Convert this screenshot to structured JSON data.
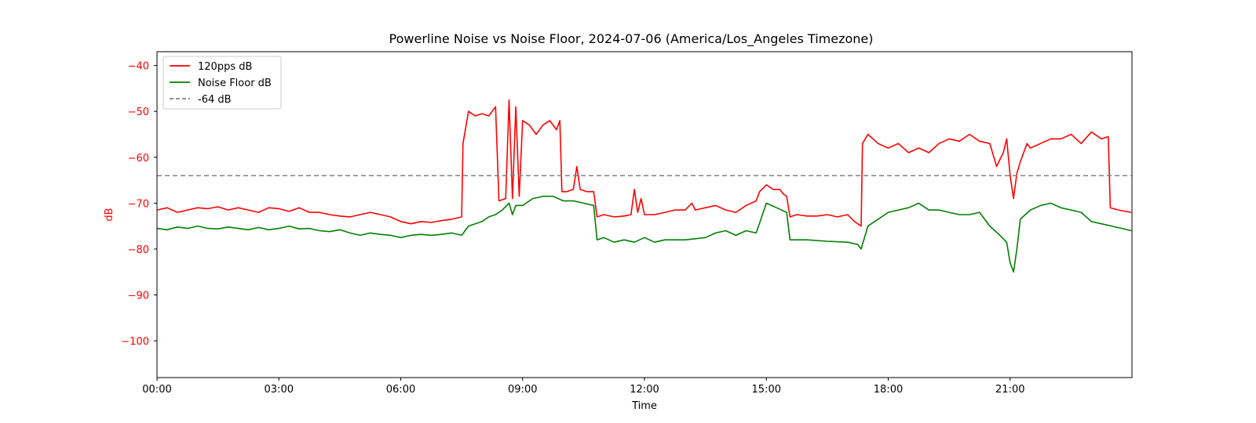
{
  "chart_data": {
    "type": "line",
    "title": "Powerline Noise vs Noise Floor, 2024-07-06 (America/Los_Angeles Timezone)",
    "xlabel": "Time",
    "ylabel": "dB",
    "xlim": [
      "00:00",
      "24:00"
    ],
    "ylim": [
      -108,
      -37
    ],
    "x_ticks": [
      "00:00",
      "03:00",
      "06:00",
      "09:00",
      "12:00",
      "15:00",
      "18:00",
      "21:00"
    ],
    "y_ticks": [
      -40,
      -50,
      -60,
      -70,
      -80,
      -90,
      -100
    ],
    "grid": false,
    "legend_position": "top-left",
    "ylabel_color": "#ff0000",
    "series": [
      {
        "name": "120pps dB",
        "color": "#ff0000",
        "points": [
          [
            "00:00",
            -71.5
          ],
          [
            "00:15",
            -71.0
          ],
          [
            "00:30",
            -72.0
          ],
          [
            "00:45",
            -71.5
          ],
          [
            "01:00",
            -71.0
          ],
          [
            "01:15",
            -71.2
          ],
          [
            "01:30",
            -70.8
          ],
          [
            "01:45",
            -71.5
          ],
          [
            "02:00",
            -71.0
          ],
          [
            "02:15",
            -71.5
          ],
          [
            "02:30",
            -72.0
          ],
          [
            "02:45",
            -71.0
          ],
          [
            "03:00",
            -71.2
          ],
          [
            "03:15",
            -71.8
          ],
          [
            "03:30",
            -71.0
          ],
          [
            "03:45",
            -72.0
          ],
          [
            "04:00",
            -72.0
          ],
          [
            "04:15",
            -72.5
          ],
          [
            "04:30",
            -72.8
          ],
          [
            "04:45",
            -73.0
          ],
          [
            "05:00",
            -72.5
          ],
          [
            "05:15",
            -72.0
          ],
          [
            "05:30",
            -72.5
          ],
          [
            "05:45",
            -73.0
          ],
          [
            "06:00",
            -74.0
          ],
          [
            "06:15",
            -74.5
          ],
          [
            "06:30",
            -74.0
          ],
          [
            "06:45",
            -74.2
          ],
          [
            "07:00",
            -73.8
          ],
          [
            "07:15",
            -73.5
          ],
          [
            "07:30",
            -73.0
          ],
          [
            "07:32",
            -57.0
          ],
          [
            "07:40",
            -50.0
          ],
          [
            "07:50",
            -51.0
          ],
          [
            "08:00",
            -50.5
          ],
          [
            "08:10",
            -51.0
          ],
          [
            "08:20",
            -49.0
          ],
          [
            "08:25",
            -69.5
          ],
          [
            "08:35",
            -69.0
          ],
          [
            "08:40",
            -47.5
          ],
          [
            "08:45",
            -69.0
          ],
          [
            "08:50",
            -49.0
          ],
          [
            "08:55",
            -68.5
          ],
          [
            "09:00",
            -52.0
          ],
          [
            "09:10",
            -53.0
          ],
          [
            "09:20",
            -55.0
          ],
          [
            "09:30",
            -53.0
          ],
          [
            "09:40",
            -52.0
          ],
          [
            "09:50",
            -54.0
          ],
          [
            "09:55",
            -52.0
          ],
          [
            "09:58",
            -67.5
          ],
          [
            "10:05",
            -67.5
          ],
          [
            "10:15",
            -67.0
          ],
          [
            "10:20",
            -62.0
          ],
          [
            "10:25",
            -67.0
          ],
          [
            "10:35",
            -67.5
          ],
          [
            "10:45",
            -67.5
          ],
          [
            "10:50",
            -73.0
          ],
          [
            "11:00",
            -72.5
          ],
          [
            "11:15",
            -73.0
          ],
          [
            "11:30",
            -72.8
          ],
          [
            "11:40",
            -72.5
          ],
          [
            "11:45",
            -67.0
          ],
          [
            "11:50",
            -72.0
          ],
          [
            "11:55",
            -69.0
          ],
          [
            "12:00",
            -72.5
          ],
          [
            "12:15",
            -72.5
          ],
          [
            "12:30",
            -72.0
          ],
          [
            "12:45",
            -71.5
          ],
          [
            "13:00",
            -71.5
          ],
          [
            "13:10",
            -70.0
          ],
          [
            "13:15",
            -71.5
          ],
          [
            "13:30",
            -71.0
          ],
          [
            "13:45",
            -70.5
          ],
          [
            "14:00",
            -71.5
          ],
          [
            "14:15",
            -72.0
          ],
          [
            "14:30",
            -70.5
          ],
          [
            "14:45",
            -69.5
          ],
          [
            "14:50",
            -67.5
          ],
          [
            "15:00",
            -66.0
          ],
          [
            "15:10",
            -67.0
          ],
          [
            "15:20",
            -67.0
          ],
          [
            "15:25",
            -68.0
          ],
          [
            "15:30",
            -68.5
          ],
          [
            "15:35",
            -73.0
          ],
          [
            "15:45",
            -72.5
          ],
          [
            "16:00",
            -72.8
          ],
          [
            "16:15",
            -72.8
          ],
          [
            "16:30",
            -72.5
          ],
          [
            "16:45",
            -73.0
          ],
          [
            "17:00",
            -72.5
          ],
          [
            "17:10",
            -74.0
          ],
          [
            "17:20",
            -75.0
          ],
          [
            "17:22",
            -57.0
          ],
          [
            "17:30",
            -55.0
          ],
          [
            "17:45",
            -57.0
          ],
          [
            "18:00",
            -58.0
          ],
          [
            "18:15",
            -57.0
          ],
          [
            "18:30",
            -59.0
          ],
          [
            "18:45",
            -58.0
          ],
          [
            "19:00",
            -59.0
          ],
          [
            "19:15",
            -57.0
          ],
          [
            "19:30",
            -56.0
          ],
          [
            "19:45",
            -56.5
          ],
          [
            "20:00",
            -55.0
          ],
          [
            "20:15",
            -56.5
          ],
          [
            "20:30",
            -57.0
          ],
          [
            "20:40",
            -62.0
          ],
          [
            "20:50",
            -59.0
          ],
          [
            "20:55",
            -56.0
          ],
          [
            "21:00",
            -64.0
          ],
          [
            "21:05",
            -69.0
          ],
          [
            "21:10",
            -63.5
          ],
          [
            "21:15",
            -61.0
          ],
          [
            "21:25",
            -57.0
          ],
          [
            "21:30",
            -58.0
          ],
          [
            "21:45",
            -57.0
          ],
          [
            "22:00",
            -56.0
          ],
          [
            "22:15",
            -56.0
          ],
          [
            "22:30",
            -55.0
          ],
          [
            "22:45",
            -57.0
          ],
          [
            "23:00",
            -54.5
          ],
          [
            "23:15",
            -56.0
          ],
          [
            "23:25",
            -55.5
          ],
          [
            "23:28",
            -71.0
          ],
          [
            "23:40",
            -71.5
          ],
          [
            "23:59",
            -72.0
          ]
        ]
      },
      {
        "name": "Noise Floor dB",
        "color": "#008000",
        "points": [
          [
            "00:00",
            -75.5
          ],
          [
            "00:15",
            -75.8
          ],
          [
            "00:30",
            -75.2
          ],
          [
            "00:45",
            -75.5
          ],
          [
            "01:00",
            -75.0
          ],
          [
            "01:15",
            -75.5
          ],
          [
            "01:30",
            -75.6
          ],
          [
            "01:45",
            -75.2
          ],
          [
            "02:00",
            -75.5
          ],
          [
            "02:15",
            -75.8
          ],
          [
            "02:30",
            -75.3
          ],
          [
            "02:45",
            -75.8
          ],
          [
            "03:00",
            -75.5
          ],
          [
            "03:15",
            -75.0
          ],
          [
            "03:30",
            -75.6
          ],
          [
            "03:45",
            -75.5
          ],
          [
            "04:00",
            -76.0
          ],
          [
            "04:15",
            -76.2
          ],
          [
            "04:30",
            -75.8
          ],
          [
            "04:45",
            -76.5
          ],
          [
            "05:00",
            -77.0
          ],
          [
            "05:15",
            -76.5
          ],
          [
            "05:30",
            -76.8
          ],
          [
            "05:45",
            -77.0
          ],
          [
            "06:00",
            -77.5
          ],
          [
            "06:15",
            -77.0
          ],
          [
            "06:30",
            -76.8
          ],
          [
            "06:45",
            -77.0
          ],
          [
            "07:00",
            -76.8
          ],
          [
            "07:15",
            -76.5
          ],
          [
            "07:30",
            -77.0
          ],
          [
            "07:40",
            -75.0
          ],
          [
            "08:00",
            -74.0
          ],
          [
            "08:10",
            -73.0
          ],
          [
            "08:20",
            -72.5
          ],
          [
            "08:30",
            -71.5
          ],
          [
            "08:40",
            -70.0
          ],
          [
            "08:45",
            -72.5
          ],
          [
            "08:50",
            -70.5
          ],
          [
            "09:00",
            -70.5
          ],
          [
            "09:15",
            -69.0
          ],
          [
            "09:30",
            -68.5
          ],
          [
            "09:45",
            -68.5
          ],
          [
            "10:00",
            -69.5
          ],
          [
            "10:15",
            -69.5
          ],
          [
            "10:30",
            -70.0
          ],
          [
            "10:45",
            -70.5
          ],
          [
            "10:50",
            -78.0
          ],
          [
            "11:00",
            -77.5
          ],
          [
            "11:15",
            -78.5
          ],
          [
            "11:30",
            -78.0
          ],
          [
            "11:45",
            -78.5
          ],
          [
            "12:00",
            -77.5
          ],
          [
            "12:15",
            -78.5
          ],
          [
            "12:30",
            -78.0
          ],
          [
            "13:00",
            -78.0
          ],
          [
            "13:30",
            -77.5
          ],
          [
            "13:45",
            -76.5
          ],
          [
            "14:00",
            -76.0
          ],
          [
            "14:15",
            -77.0
          ],
          [
            "14:30",
            -76.0
          ],
          [
            "14:45",
            -76.5
          ],
          [
            "15:00",
            -70.0
          ],
          [
            "15:15",
            -71.0
          ],
          [
            "15:30",
            -72.0
          ],
          [
            "15:35",
            -78.0
          ],
          [
            "16:00",
            -78.0
          ],
          [
            "16:30",
            -78.3
          ],
          [
            "17:00",
            -78.5
          ],
          [
            "17:15",
            -79.0
          ],
          [
            "17:20",
            -80.0
          ],
          [
            "17:30",
            -75.0
          ],
          [
            "17:45",
            -73.5
          ],
          [
            "18:00",
            -72.0
          ],
          [
            "18:15",
            -71.5
          ],
          [
            "18:30",
            -71.0
          ],
          [
            "18:45",
            -70.0
          ],
          [
            "19:00",
            -71.5
          ],
          [
            "19:15",
            -71.5
          ],
          [
            "19:30",
            -72.0
          ],
          [
            "19:45",
            -72.5
          ],
          [
            "20:00",
            -72.5
          ],
          [
            "20:15",
            -72.0
          ],
          [
            "20:30",
            -75.0
          ],
          [
            "20:45",
            -77.0
          ],
          [
            "20:55",
            -78.5
          ],
          [
            "21:00",
            -83.0
          ],
          [
            "21:05",
            -85.0
          ],
          [
            "21:10",
            -80.0
          ],
          [
            "21:15",
            -73.5
          ],
          [
            "21:30",
            -71.5
          ],
          [
            "21:45",
            -70.5
          ],
          [
            "22:00",
            -70.0
          ],
          [
            "22:15",
            -71.0
          ],
          [
            "22:30",
            -71.5
          ],
          [
            "22:45",
            -72.0
          ],
          [
            "23:00",
            -74.0
          ],
          [
            "23:15",
            -74.5
          ],
          [
            "23:30",
            -75.0
          ],
          [
            "23:45",
            -75.5
          ],
          [
            "23:59",
            -76.0
          ]
        ]
      },
      {
        "name": "-64 dB",
        "color": "#808080",
        "style": "dashed",
        "points": [
          [
            "00:00",
            -64
          ],
          [
            "23:59",
            -64
          ]
        ]
      }
    ]
  }
}
